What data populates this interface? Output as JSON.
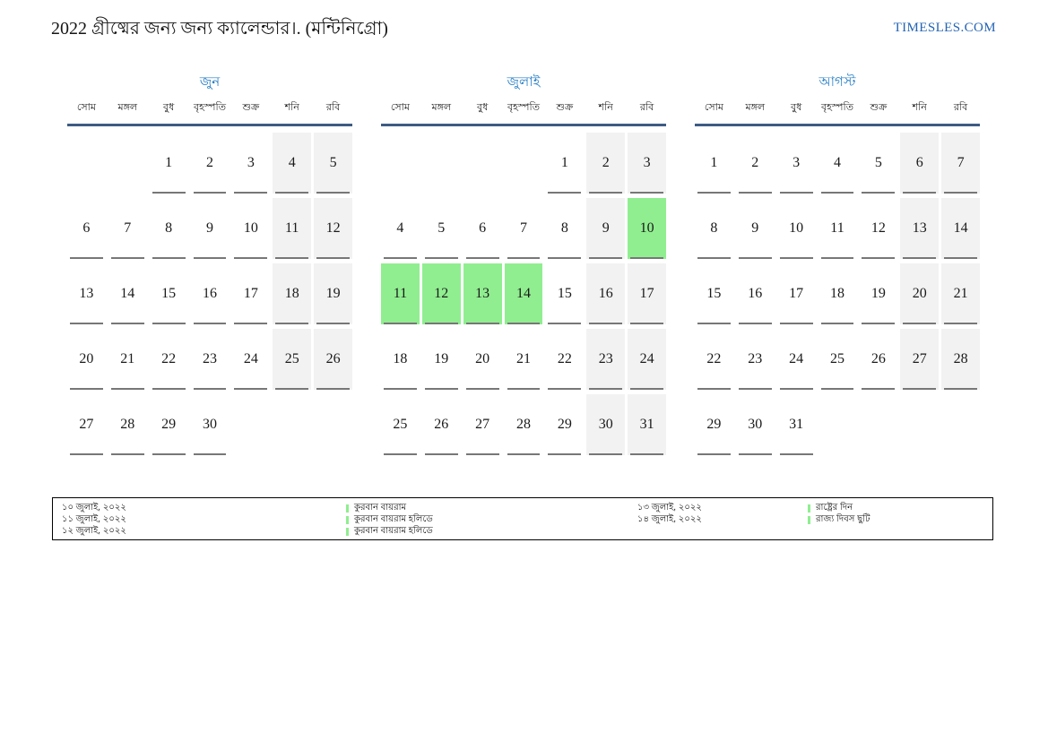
{
  "header": {
    "title": "2022 গ্রীষ্মের জন্য জন্য ক্যালেন্ডার।. (মন্টিনিগ্রো)",
    "site": "TIMESLES.COM"
  },
  "weekdays": [
    "সোম",
    "মঙ্গল",
    "বুধ",
    "বৃহস্পতি",
    "শুক্র",
    "শনি",
    "রবি"
  ],
  "months": [
    {
      "name": "জুন",
      "weeks": [
        [
          null,
          null,
          1,
          2,
          3,
          4,
          5
        ],
        [
          6,
          7,
          8,
          9,
          10,
          11,
          12
        ],
        [
          13,
          14,
          15,
          16,
          17,
          18,
          19
        ],
        [
          20,
          21,
          22,
          23,
          24,
          25,
          26
        ],
        [
          27,
          28,
          29,
          30,
          null,
          null,
          null
        ]
      ],
      "highlights": []
    },
    {
      "name": "জুলাই",
      "weeks": [
        [
          null,
          null,
          null,
          null,
          1,
          2,
          3
        ],
        [
          4,
          5,
          6,
          7,
          8,
          9,
          10
        ],
        [
          11,
          12,
          13,
          14,
          15,
          16,
          17
        ],
        [
          18,
          19,
          20,
          21,
          22,
          23,
          24
        ],
        [
          25,
          26,
          27,
          28,
          29,
          30,
          31
        ]
      ],
      "highlights": [
        10,
        11,
        12,
        13,
        14
      ]
    },
    {
      "name": "আগস্ট",
      "weeks": [
        [
          1,
          2,
          3,
          4,
          5,
          6,
          7
        ],
        [
          8,
          9,
          10,
          11,
          12,
          13,
          14
        ],
        [
          15,
          16,
          17,
          18,
          19,
          20,
          21
        ],
        [
          22,
          23,
          24,
          25,
          26,
          27,
          28
        ],
        [
          29,
          30,
          31,
          null,
          null,
          null,
          null
        ]
      ],
      "highlights": []
    }
  ],
  "legend": {
    "groups": [
      {
        "entries": [
          {
            "date": "১০ জুলাই, ২০২২",
            "label": "কুরবান বায়রাম"
          },
          {
            "date": "১১ জুলাই, ২০২২",
            "label": "কুরবান বায়রাম হলিডে"
          },
          {
            "date": "১২ জুলাই, ২০২২",
            "label": "কুরবান বায়রাম হলিডে"
          }
        ]
      },
      {
        "entries": [
          {
            "date": "১৩ জুলাই, ২০২২",
            "label": "রাষ্ট্রের দিন"
          },
          {
            "date": "১৪ জুলাই, ২০২২",
            "label": "রাজ্য দিবস ছুটি"
          }
        ]
      }
    ]
  },
  "colors": {
    "month_title_blue": "#217bc4",
    "header_line_blue": "#3e5c84",
    "weekend_gray": "#f2f2f2",
    "highlight_green": "#90ee90",
    "underline_gray": "#777777",
    "site_link_blue": "#2464b4"
  }
}
